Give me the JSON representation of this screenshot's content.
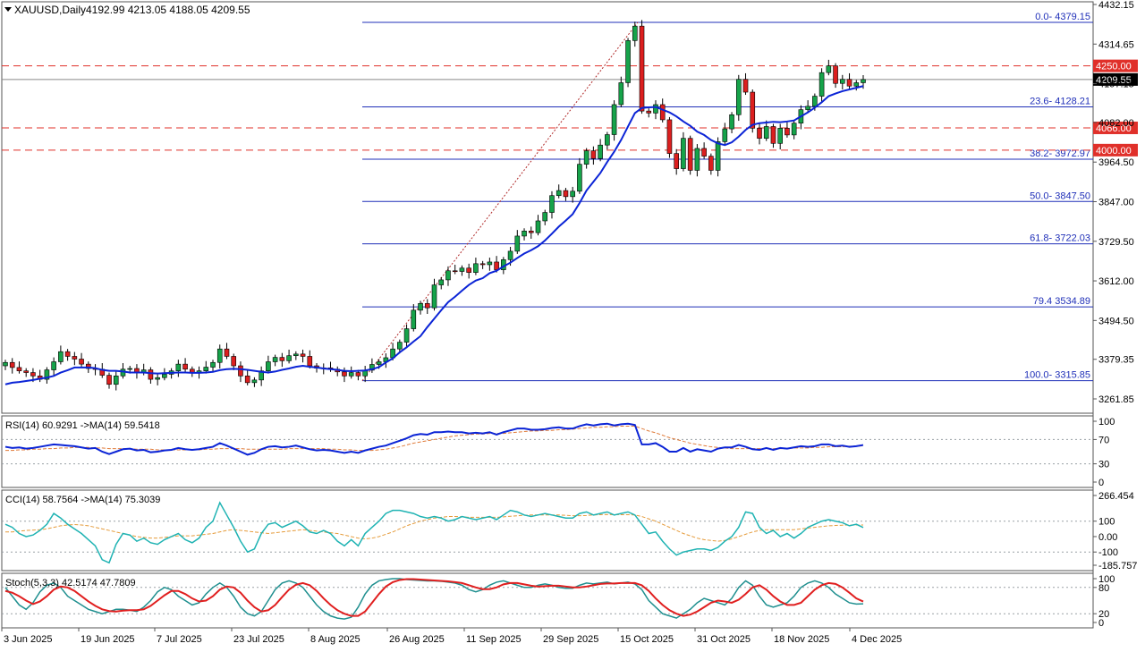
{
  "header": {
    "symbol_label": "XAUUSD,Daily",
    "ohlc": "4192.99 4213.05 4188.05 4209.55"
  },
  "colors": {
    "up": "#16a34a",
    "down": "#dc1f1f",
    "ma": "#0b24d6",
    "fib": "#1f2fb8",
    "level": "#e0302a",
    "grid": "#9aa0a6"
  },
  "chart_data": [
    {
      "type": "candlestick",
      "panel": "price",
      "title": "XAUUSD,Daily",
      "ylim": [
        3210,
        4440
      ],
      "y_ticks": [
        "4432.15",
        "4314.65",
        "4197.15",
        "4082.00",
        "3964.50",
        "3847.00",
        "3729.50",
        "3612.00",
        "3494.50",
        "3379.35",
        "3261.85"
      ],
      "x_ticks": [
        "3 Jun 2025",
        "19 Jun 2025",
        "7 Jul 2025",
        "23 Jul 2025",
        "8 Aug 2025",
        "26 Aug 2025",
        "11 Sep 2025",
        "29 Sep 2025",
        "15 Oct 2025",
        "31 Oct 2025",
        "18 Nov 2025",
        "4 Dec 2025"
      ],
      "close": [
        3370,
        3355,
        3345,
        3340,
        3330,
        3320,
        3348,
        3372,
        3402,
        3388,
        3380,
        3365,
        3352,
        3350,
        3332,
        3305,
        3330,
        3350,
        3352,
        3340,
        3348,
        3320,
        3325,
        3335,
        3345,
        3365,
        3350,
        3340,
        3345,
        3356,
        3370,
        3410,
        3388,
        3360,
        3330,
        3310,
        3318,
        3345,
        3372,
        3385,
        3375,
        3390,
        3395,
        3388,
        3360,
        3353,
        3354,
        3350,
        3342,
        3330,
        3340,
        3330,
        3347,
        3364,
        3372,
        3384,
        3410,
        3430,
        3470,
        3525,
        3545,
        3532,
        3600,
        3615,
        3642,
        3640,
        3650,
        3637,
        3663,
        3660,
        3668,
        3645,
        3675,
        3700,
        3745,
        3760,
        3755,
        3790,
        3815,
        3865,
        3880,
        3862,
        3878,
        3958,
        3998,
        3975,
        4015,
        4046,
        4135,
        4200,
        4325,
        4368,
        4116,
        4110,
        4135,
        4090,
        3990,
        3945,
        4035,
        3940,
        4005,
        3982,
        3940,
        4025,
        4063,
        4105,
        4210,
        4172,
        4065,
        4035,
        4070,
        4020,
        4065,
        4045,
        4080,
        4120,
        4130,
        4160,
        4230,
        4250,
        4198,
        4210,
        4190,
        4200,
        4209.55
      ],
      "ma": [
        3305,
        3310,
        3312,
        3315,
        3318,
        3322,
        3325,
        3330,
        3340,
        3347,
        3355,
        3355,
        3355,
        3353,
        3348,
        3345,
        3345,
        3343,
        3340,
        3340,
        3340,
        3338,
        3337,
        3338,
        3339,
        3340,
        3340,
        3339,
        3339,
        3340,
        3342,
        3347,
        3350,
        3351,
        3350,
        3348,
        3345,
        3342,
        3340,
        3343,
        3348,
        3352,
        3357,
        3360,
        3357,
        3355,
        3352,
        3350,
        3348,
        3345,
        3344,
        3345,
        3346,
        3350,
        3356,
        3370,
        3382,
        3400,
        3415,
        3432,
        3448,
        3475,
        3500,
        3525,
        3549,
        3565,
        3583,
        3600,
        3613,
        3620,
        3635,
        3642,
        3655,
        3666,
        3680,
        3693,
        3703,
        3715,
        3732,
        3752,
        3773,
        3791,
        3810,
        3843,
        3880,
        3906,
        3932,
        3965,
        3995,
        4030,
        4070,
        4110,
        4125,
        4127,
        4128,
        4120,
        4112,
        4100,
        4085,
        4072,
        4055,
        4045,
        4030,
        4020,
        4015,
        4023,
        4040,
        4060,
        4075,
        4080,
        4082,
        4084,
        4083,
        4085,
        4088,
        4100,
        4112,
        4126,
        4142,
        4160,
        4168,
        4175,
        4180,
        4185,
        4190
      ],
      "fib_levels": [
        {
          "label": "0.0- 4379.15",
          "value": 4379.15
        },
        {
          "label": "23.6- 4128.21",
          "value": 4128.21
        },
        {
          "label": "38.2- 3972.97",
          "value": 3972.97
        },
        {
          "label": "50.0- 3847.50",
          "value": 3847.5
        },
        {
          "label": "61.8- 3722.03",
          "value": 3722.03
        },
        {
          "label": "79.4 3534.89",
          "value": 3534.89
        },
        {
          "label": "100.0- 3315.85",
          "value": 3315.85
        }
      ],
      "levels": [
        {
          "label": "4250.00",
          "value": 4250.0
        },
        {
          "label": "4066.00",
          "value": 4066.0
        },
        {
          "label": "4000.00",
          "value": 4000.0
        }
      ],
      "current_price": {
        "label": "4209.55",
        "value": 4209.55
      }
    },
    {
      "type": "line",
      "panel": "rsi",
      "label": "RSI(14) 60.9291  ->MA(14) 59.5418",
      "ylim": [
        0,
        100
      ],
      "y_ticks": [
        "100",
        "70",
        "30",
        "0"
      ],
      "series": [
        {
          "values": [
            58,
            56,
            57,
            55,
            56,
            58,
            60,
            62,
            61,
            60,
            59,
            57,
            55,
            56,
            50,
            46,
            50,
            54,
            55,
            52,
            53,
            49,
            50,
            52,
            53,
            56,
            54,
            53,
            54,
            56,
            58,
            64,
            60,
            55,
            50,
            45,
            48,
            54,
            58,
            59,
            57,
            58,
            60,
            57,
            54,
            52,
            53,
            52,
            50,
            48,
            50,
            48,
            52,
            55,
            58,
            60,
            64,
            68,
            72,
            77,
            79,
            78,
            82,
            82,
            83,
            82,
            82,
            80,
            81,
            80,
            82,
            78,
            82,
            85,
            88,
            88,
            86,
            86,
            87,
            89,
            90,
            88,
            88,
            92,
            95,
            93,
            95,
            96,
            93,
            95,
            96,
            94,
            62,
            62,
            64,
            58,
            50,
            50,
            56,
            50,
            54,
            52,
            50,
            55,
            57,
            57,
            61,
            58,
            54,
            53,
            56,
            53,
            56,
            55,
            57,
            59,
            58,
            59,
            62,
            62,
            59,
            60,
            58,
            59,
            60.93
          ]
        },
        {
          "values": [
            52,
            52,
            53,
            53,
            54,
            54,
            55,
            55,
            56,
            56,
            57,
            57,
            57,
            56,
            56,
            55,
            55,
            55,
            55,
            54,
            54,
            54,
            53,
            53,
            53,
            53,
            53,
            53,
            53,
            54,
            54,
            55,
            55,
            55,
            55,
            54,
            54,
            54,
            54,
            54,
            54,
            55,
            55,
            55,
            55,
            55,
            55,
            54,
            54,
            53,
            53,
            52,
            52,
            52,
            53,
            54,
            56,
            58,
            61,
            64,
            66,
            68,
            70,
            72,
            74,
            76,
            77,
            78,
            79,
            79,
            80,
            80,
            80,
            81,
            82,
            83,
            84,
            84,
            85,
            85,
            86,
            86,
            87,
            88,
            89,
            90,
            90,
            91,
            91,
            92,
            92,
            92,
            88,
            84,
            81,
            77,
            73,
            70,
            67,
            64,
            62,
            60,
            58,
            57,
            56,
            55,
            55,
            55,
            55,
            55,
            55,
            55,
            55,
            55,
            56,
            56,
            56,
            57,
            57,
            58,
            58,
            58,
            59,
            59,
            59.54
          ]
        }
      ]
    },
    {
      "type": "line",
      "panel": "cci",
      "label": "CCI(14) 58.7564  ->MA(14) 75.3039",
      "ylim": [
        -185.757,
        266.454
      ],
      "y_ticks": [
        "266.454",
        "100",
        "0.00",
        "-100",
        "-185.757"
      ],
      "series": [
        {
          "values": [
            80,
            60,
            20,
            0,
            10,
            40,
            80,
            150,
            120,
            80,
            50,
            20,
            -20,
            -60,
            -150,
            -170,
            -50,
            20,
            10,
            -30,
            -10,
            -40,
            -50,
            -20,
            0,
            20,
            -20,
            -40,
            -10,
            60,
            100,
            220,
            140,
            60,
            -30,
            -100,
            -80,
            20,
            80,
            90,
            60,
            80,
            100,
            70,
            30,
            20,
            40,
            20,
            -30,
            -60,
            -20,
            -60,
            20,
            60,
            100,
            150,
            170,
            170,
            160,
            150,
            130,
            120,
            130,
            120,
            100,
            110,
            130,
            120,
            110,
            120,
            130,
            110,
            140,
            170,
            160,
            140,
            130,
            140,
            150,
            140,
            130,
            120,
            120,
            150,
            160,
            140,
            150,
            160,
            140,
            150,
            160,
            140,
            80,
            20,
            30,
            -30,
            -80,
            -120,
            -100,
            -90,
            -80,
            -80,
            -90,
            -70,
            -30,
            0,
            60,
            160,
            150,
            60,
            20,
            40,
            0,
            20,
            -10,
            20,
            60,
            80,
            100,
            110,
            100,
            90,
            70,
            80,
            58.76
          ]
        },
        {
          "values": [
            30,
            30,
            35,
            40,
            42,
            45,
            50,
            60,
            70,
            75,
            78,
            75,
            70,
            60,
            50,
            40,
            30,
            20,
            10,
            0,
            -5,
            -10,
            -10,
            -5,
            0,
            5,
            5,
            5,
            10,
            15,
            20,
            30,
            40,
            45,
            40,
            35,
            30,
            25,
            20,
            25,
            30,
            35,
            40,
            45,
            40,
            35,
            30,
            25,
            20,
            10,
            0,
            -10,
            -15,
            -10,
            0,
            15,
            30,
            50,
            70,
            85,
            100,
            110,
            120,
            125,
            130,
            130,
            128,
            125,
            125,
            125,
            125,
            125,
            128,
            132,
            135,
            138,
            140,
            140,
            140,
            140,
            140,
            138,
            135,
            135,
            137,
            140,
            142,
            143,
            142,
            142,
            142,
            140,
            130,
            115,
            100,
            80,
            60,
            40,
            20,
            5,
            -10,
            -20,
            -25,
            -30,
            -25,
            -15,
            0,
            15,
            30,
            40,
            45,
            45,
            45,
            45,
            45,
            50,
            55,
            60,
            65,
            70,
            72,
            74,
            75,
            75,
            75.3
          ]
        }
      ]
    },
    {
      "type": "line",
      "panel": "stoch",
      "label": "Stoch(5,3,3) 42.5174 47.7809",
      "ylim": [
        0,
        100
      ],
      "y_ticks": [
        "100",
        "80",
        "20",
        "0"
      ],
      "series": [
        {
          "values": [
            80,
            60,
            40,
            30,
            45,
            70,
            85,
            90,
            80,
            60,
            50,
            40,
            30,
            25,
            20,
            25,
            30,
            30,
            28,
            25,
            35,
            50,
            70,
            80,
            75,
            60,
            50,
            40,
            45,
            65,
            80,
            90,
            80,
            60,
            35,
            20,
            15,
            25,
            50,
            75,
            90,
            95,
            90,
            80,
            60,
            40,
            25,
            15,
            10,
            8,
            12,
            35,
            65,
            85,
            95,
            98,
            100,
            100,
            98,
            97,
            96,
            95,
            95,
            94,
            92,
            90,
            85,
            75,
            70,
            75,
            85,
            92,
            95,
            90,
            85,
            80,
            80,
            85,
            88,
            85,
            80,
            78,
            78,
            85,
            90,
            88,
            90,
            92,
            88,
            90,
            92,
            88,
            75,
            50,
            35,
            20,
            15,
            10,
            20,
            30,
            45,
            55,
            50,
            45,
            40,
            55,
            80,
            95,
            85,
            60,
            40,
            35,
            40,
            45,
            60,
            80,
            90,
            95,
            90,
            80,
            65,
            55,
            45,
            42,
            42.52
          ]
        },
        {
          "values": [
            72,
            68,
            60,
            50,
            42,
            48,
            60,
            75,
            82,
            80,
            72,
            60,
            48,
            38,
            30,
            26,
            25,
            27,
            28,
            28,
            30,
            38,
            50,
            62,
            72,
            72,
            65,
            55,
            48,
            50,
            60,
            75,
            82,
            80,
            68,
            50,
            35,
            25,
            28,
            40,
            58,
            75,
            86,
            90,
            85,
            72,
            55,
            40,
            28,
            20,
            15,
            15,
            25,
            45,
            65,
            82,
            92,
            97,
            99,
            99,
            98,
            97,
            96,
            95,
            94,
            92,
            90,
            85,
            80,
            76,
            76,
            80,
            87,
            90,
            90,
            87,
            84,
            82,
            83,
            84,
            84,
            82,
            80,
            80,
            82,
            85,
            88,
            89,
            89,
            90,
            90,
            90,
            85,
            72,
            55,
            40,
            28,
            20,
            15,
            18,
            25,
            35,
            45,
            50,
            48,
            45,
            52,
            65,
            80,
            85,
            75,
            60,
            48,
            40,
            40,
            45,
            60,
            75,
            85,
            90,
            88,
            80,
            68,
            55,
            47.78
          ]
        }
      ]
    }
  ]
}
